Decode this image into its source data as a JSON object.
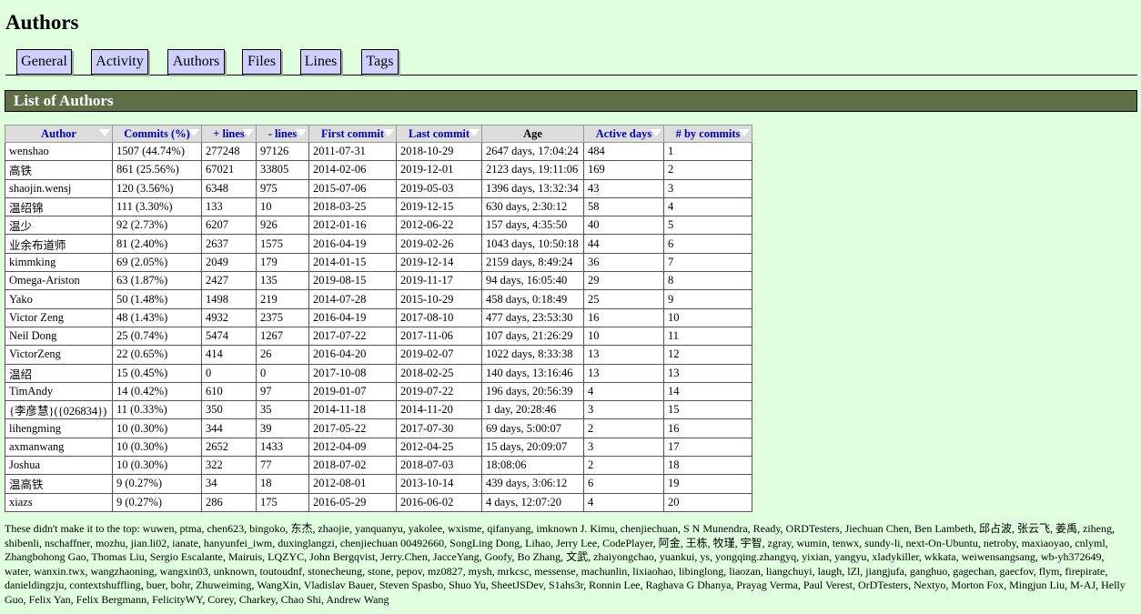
{
  "page": {
    "title": "Authors"
  },
  "nav": {
    "tabs": [
      {
        "label": "General"
      },
      {
        "label": "Activity"
      },
      {
        "label": "Authors"
      },
      {
        "label": "Files"
      },
      {
        "label": "Lines"
      },
      {
        "label": "Tags"
      }
    ]
  },
  "section": {
    "title": "List of Authors"
  },
  "table": {
    "headers": [
      "Author",
      "Commits (%)",
      "+ lines",
      "- lines",
      "First commit",
      "Last commit",
      "Age",
      "Active days",
      "# by commits"
    ],
    "rows": [
      [
        "wenshao",
        "1507 (44.74%)",
        "277248",
        "97126",
        "2011-07-31",
        "2018-10-29",
        "2647 days, 17:04:24",
        "484",
        "1"
      ],
      [
        "高铁",
        "861 (25.56%)",
        "67021",
        "33805",
        "2014-02-06",
        "2019-12-01",
        "2123 days, 19:11:06",
        "169",
        "2"
      ],
      [
        "shaojin.wensj",
        "120 (3.56%)",
        "6348",
        "975",
        "2015-07-06",
        "2019-05-03",
        "1396 days, 13:32:34",
        "43",
        "3"
      ],
      [
        "温绍锦",
        "111 (3.30%)",
        "133",
        "10",
        "2018-03-25",
        "2019-12-15",
        "630 days, 2:30:12",
        "58",
        "4"
      ],
      [
        "温少",
        "92 (2.73%)",
        "6207",
        "926",
        "2012-01-16",
        "2012-06-22",
        "157 days, 4:35:50",
        "40",
        "5"
      ],
      [
        "业余布道师",
        "81 (2.40%)",
        "2637",
        "1575",
        "2016-04-19",
        "2019-02-26",
        "1043 days, 10:50:18",
        "44",
        "6"
      ],
      [
        "kimmking",
        "69 (2.05%)",
        "2049",
        "179",
        "2014-01-15",
        "2019-12-14",
        "2159 days, 8:49:24",
        "36",
        "7"
      ],
      [
        "Omega-Ariston",
        "63 (1.87%)",
        "2427",
        "135",
        "2019-08-15",
        "2019-11-17",
        "94 days, 16:05:40",
        "29",
        "8"
      ],
      [
        "Yako",
        "50 (1.48%)",
        "1498",
        "219",
        "2014-07-28",
        "2015-10-29",
        "458 days, 0:18:49",
        "25",
        "9"
      ],
      [
        "Victor Zeng",
        "48 (1.43%)",
        "4932",
        "2375",
        "2016-04-19",
        "2017-08-10",
        "477 days, 23:53:30",
        "16",
        "10"
      ],
      [
        "Neil Dong",
        "25 (0.74%)",
        "5474",
        "1267",
        "2017-07-22",
        "2017-11-06",
        "107 days, 21:26:29",
        "10",
        "11"
      ],
      [
        "VictorZeng",
        "22 (0.65%)",
        "414",
        "26",
        "2016-04-20",
        "2019-02-07",
        "1022 days, 8:33:38",
        "13",
        "12"
      ],
      [
        "温绍",
        "15 (0.45%)",
        "0",
        "0",
        "2017-10-08",
        "2018-02-25",
        "140 days, 13:16:46",
        "13",
        "13"
      ],
      [
        "TimAndy",
        "14 (0.42%)",
        "610",
        "97",
        "2019-01-07",
        "2019-07-22",
        "196 days, 20:56:39",
        "4",
        "14"
      ],
      [
        "{李彦慧}({026834})",
        "11 (0.33%)",
        "350",
        "35",
        "2014-11-18",
        "2014-11-20",
        "1 day, 20:28:46",
        "3",
        "15"
      ],
      [
        "lihengming",
        "10 (0.30%)",
        "344",
        "39",
        "2017-05-22",
        "2017-07-30",
        "69 days, 5:00:07",
        "2",
        "16"
      ],
      [
        "axmanwang",
        "10 (0.30%)",
        "2652",
        "1433",
        "2012-04-09",
        "2012-04-25",
        "15 days, 20:09:07",
        "3",
        "17"
      ],
      [
        "Joshua",
        "10 (0.30%)",
        "322",
        "77",
        "2018-07-02",
        "2018-07-03",
        "18:08:06",
        "2",
        "18"
      ],
      [
        "温高铁",
        "9 (0.27%)",
        "34",
        "18",
        "2012-08-01",
        "2013-10-14",
        "439 days, 3:06:12",
        "6",
        "19"
      ],
      [
        "xiazs",
        "9 (0.27%)",
        "286",
        "175",
        "2016-05-29",
        "2016-06-02",
        "4 days, 12:07:20",
        "4",
        "20"
      ]
    ]
  },
  "footer": {
    "text": "These didn't make it to the top: wuwen, ptma, chen623, bingoko, 东杰, zhaojie, yanquanyu, yakolee, wxisme, qifanyang, imknown J. Kimu, chenjiechuan, S N Munendra, Ready, ORDTesters, Jiechuan Chen, Ben Lambeth, 邱占波, 张云飞, 姜禹, ziheng, shibenli, nschaffner, mozhu, jian.li02, ianate, hanyunfei_iwm, duxinglangzi, chenjiechuan 00492660, SongLing Dong, Lihao, Jerry Lee, CodePlayer, 阿金, 王栋, 牧瑾, 宇智, zgray, wumin, tenwx, sundy-li, next-On-Ubuntu, netroby, maxiaoyao, cnlyml, Zhangbohong Gao, Thomas Liu, Sergio Escalante, Mairuis, LQZYC, John Bergqvist, Jerry.Chen, JacceYang, Goofy, Bo Zhang, 文武, zhaiyongchao, yuankui, ys, yongqing.zhangyq, yixian, yangyu, xladykiller, wkkata, weiwensangsang, wb-yh372649, water, wanxin.twx, wangzhaoning, wangxin03, unknown, toutoudnf, stonecheung, stone, pepov, mz0827, mysh, mrkcsc, messense, machunlin, lixiaohao, libinglong, liaozan, liangchuyi, laugh, lZl, jiangjufa, ganghuo, gagechan, gaecfov, flym, firepirate, danieldingzju, contextshuffling, buer, bohr, Zhuweiming, WangXin, Vladislav Bauer, Steven Spasbo, Shuo Yu, SheetJSDev, S1ahs3r, Ronnin Lee, Raghava G Dhanya, Prayag Verma, Paul Verest, OrDTesters, Nextyo, Morton Fox, Mingjun Liu, M-AJ, Helly Guo, Felix Yan, Felix Bergmann, FelicityWY, Corey, Charkey, Chao Shi, Andrew Wang"
  }
}
